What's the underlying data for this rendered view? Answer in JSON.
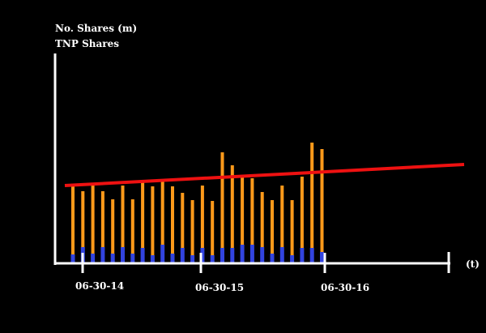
{
  "chart_data": {
    "type": "bar",
    "title": "",
    "ylabel_line1": "No. Shares (m)",
    "ylabel_line2": "TNP Shares",
    "xlabel": "(t)",
    "xtick_labels": [
      "06-30-14",
      "06-30-15",
      "06-30-16"
    ],
    "ylim": [
      0,
      200
    ],
    "grid": false,
    "colors": {
      "background": "#000000",
      "axis": "#ffffff",
      "total_bar": "#ff9a1a",
      "base_bar": "#3244e0",
      "trend": "#ee1111"
    },
    "series": [
      {
        "name": "",
        "values": [
          96,
          88,
          96,
          88,
          78,
          95,
          78,
          99,
          94,
          103,
          94,
          86,
          77,
          95,
          76,
          136,
          120,
          106,
          104,
          87,
          77,
          95,
          77,
          106,
          148,
          140
        ]
      },
      {
        "name": "",
        "values": [
          10,
          19,
          11,
          19,
          11,
          19,
          11,
          18,
          9,
          22,
          11,
          18,
          9,
          18,
          9,
          18,
          18,
          22,
          22,
          19,
          11,
          19,
          9,
          18,
          18,
          13
        ]
      }
    ],
    "trend_line": {
      "start": 95,
      "end": 121
    }
  }
}
